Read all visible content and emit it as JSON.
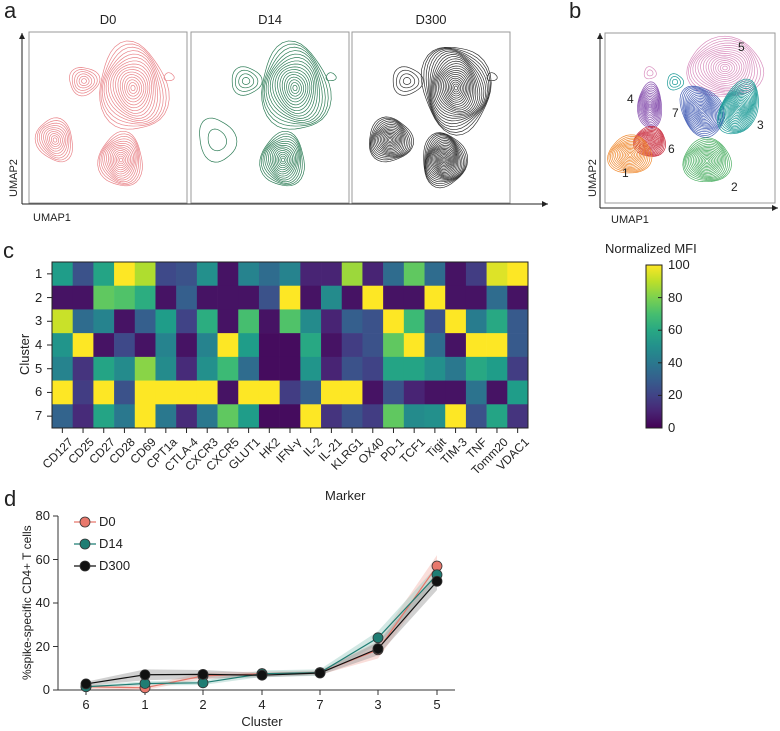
{
  "panel_labels": {
    "a": "a",
    "b": "b",
    "c": "c",
    "d": "d"
  },
  "chart_data": [
    {
      "type": "contour",
      "panel": "a",
      "facets": [
        "D0",
        "D14",
        "D300"
      ],
      "facet_colors": [
        "#e9858a",
        "#2e7d57",
        "#333333"
      ],
      "xlabel": "UMAP1",
      "ylabel": "UMAP2"
    },
    {
      "type": "contour",
      "panel": "b",
      "xlabel": "UMAP1",
      "ylabel": "UMAP2",
      "clusters": [
        {
          "label": "5",
          "color": "#d98fbf"
        },
        {
          "label": "4",
          "color": "#4a63b8"
        },
        {
          "label": "7",
          "color": "#1a9a96"
        },
        {
          "label": "3",
          "color": "#4caf63"
        },
        {
          "label": "6",
          "color": "#8a55b0"
        },
        {
          "label": "1",
          "color": "#c8283a"
        },
        {
          "label": "2",
          "color": "#f08a30"
        }
      ]
    },
    {
      "type": "heatmap",
      "panel": "c",
      "xlabel": "Marker",
      "ylabel": "Cluster",
      "colorbar_title": "Normalized MFI",
      "colorbar_ticks": [
        "100",
        "80",
        "60",
        "40",
        "20",
        "0"
      ],
      "range": [
        0,
        100
      ],
      "rows": [
        "1",
        "2",
        "3",
        "4",
        "5",
        "6",
        "7"
      ],
      "columns": [
        "CD127",
        "CD25",
        "CD27",
        "CD28",
        "CD69",
        "CPT1a",
        "CTLA-4",
        "CXCR3",
        "CXCR5",
        "GLUT1",
        "HK2",
        "IFN-γ",
        "IL-2",
        "IL-21",
        "KLRG1",
        "OX40",
        "PD-1",
        "TCF1",
        "Tigit",
        "TIM-3",
        "TNF",
        "Tomm20",
        "VDAC1"
      ],
      "values": [
        [
          55,
          25,
          58,
          100,
          88,
          22,
          25,
          50,
          5,
          45,
          35,
          45,
          10,
          10,
          85,
          10,
          35,
          75,
          35,
          5,
          18,
          95,
          100
        ],
        [
          5,
          5,
          75,
          72,
          62,
          5,
          30,
          5,
          5,
          5,
          25,
          100,
          5,
          48,
          5,
          100,
          5,
          5,
          100,
          5,
          5,
          35,
          5
        ],
        [
          92,
          35,
          45,
          5,
          30,
          55,
          20,
          62,
          5,
          70,
          5,
          72,
          48,
          10,
          30,
          25,
          100,
          68,
          25,
          100,
          42,
          60,
          28
        ],
        [
          52,
          100,
          5,
          22,
          5,
          45,
          5,
          45,
          100,
          55,
          3,
          3,
          60,
          5,
          18,
          25,
          75,
          100,
          35,
          5,
          100,
          100,
          28
        ],
        [
          45,
          15,
          58,
          48,
          82,
          48,
          12,
          50,
          68,
          35,
          3,
          3,
          52,
          10,
          25,
          20,
          58,
          58,
          50,
          40,
          60,
          55,
          18
        ],
        [
          100,
          18,
          100,
          25,
          100,
          100,
          100,
          100,
          5,
          100,
          100,
          18,
          30,
          100,
          100,
          5,
          25,
          10,
          5,
          5,
          38,
          5,
          55
        ],
        [
          32,
          12,
          58,
          40,
          100,
          40,
          12,
          40,
          75,
          55,
          3,
          3,
          100,
          15,
          25,
          18,
          75,
          48,
          50,
          100,
          25,
          58,
          15
        ]
      ]
    },
    {
      "type": "line",
      "panel": "d",
      "xlabel": "Cluster",
      "ylabel": "%spike-specific CD4+ T cells",
      "categories": [
        "6",
        "1",
        "2",
        "4",
        "7",
        "3",
        "5"
      ],
      "ylim": [
        0,
        80
      ],
      "yticks": [
        "0",
        "20",
        "40",
        "60",
        "80"
      ],
      "legend_position": "top-left",
      "series": [
        {
          "name": "D0",
          "color": "#e8786c",
          "band": "#f4b5ae",
          "values": [
            1.5,
            1,
            6.5,
            7.5,
            8,
            18.5,
            57
          ],
          "error": [
            1,
            1,
            1.5,
            1,
            1,
            4,
            5
          ]
        },
        {
          "name": "D14",
          "color": "#1f7d73",
          "band": "#9ccbc4",
          "values": [
            1.5,
            3,
            3.3,
            7.5,
            8,
            24,
            53
          ],
          "error": [
            0.5,
            1,
            1,
            1.5,
            1.5,
            3,
            4
          ]
        },
        {
          "name": "D300",
          "color": "#111111",
          "band": "#9a9a9a",
          "values": [
            2.8,
            7,
            7.2,
            6.8,
            7.8,
            19,
            50
          ],
          "error": [
            1,
            2.5,
            2,
            1,
            1,
            3,
            4
          ]
        }
      ]
    }
  ]
}
